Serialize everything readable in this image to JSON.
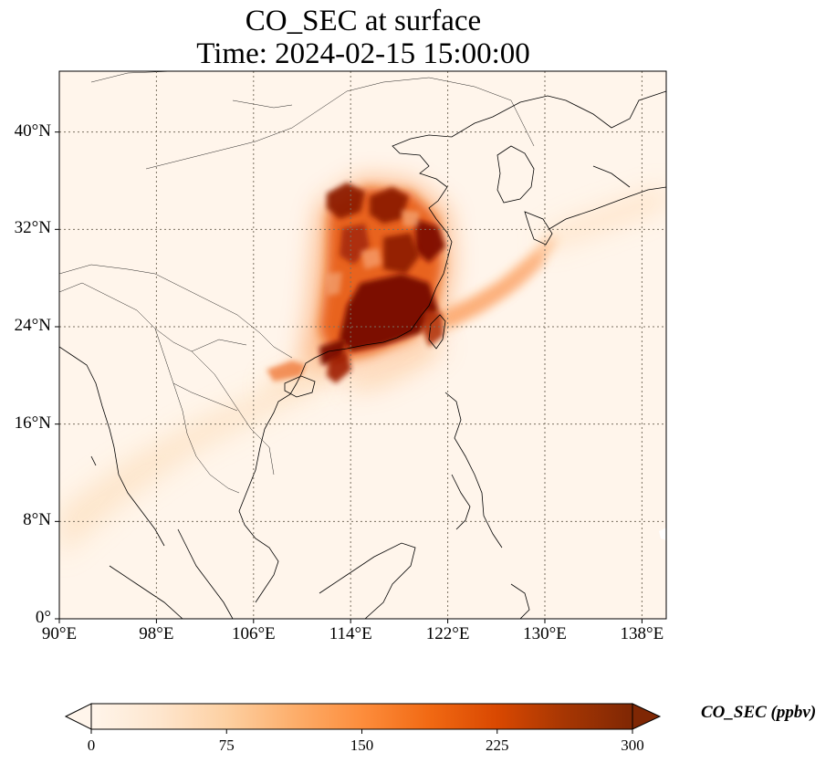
{
  "figure": {
    "title_line1": "CO_SEC at surface",
    "title_line2": "Time: 2024-02-15 15:00:00"
  },
  "map": {
    "lon_range": [
      90,
      140
    ],
    "lat_range": [
      0,
      45
    ],
    "lon_ticks": [
      "90°E",
      "98°E",
      "106°E",
      "114°E",
      "122°E",
      "130°E",
      "138°E"
    ],
    "lat_ticks": [
      "0°",
      "8°N",
      "16°N",
      "24°N",
      "32°N",
      "40°N"
    ],
    "gridlines": true,
    "field": "CO_SEC",
    "plume_regions": [
      {
        "name": "eastern-china-core",
        "lon": [
          111,
          121
        ],
        "lat": [
          21,
          36
        ],
        "level": "high"
      },
      {
        "name": "taiwan-japan-band",
        "lon": [
          120,
          134
        ],
        "lat": [
          23,
          31
        ],
        "level": "moderate"
      },
      {
        "name": "southwest-band",
        "lon": [
          90,
          112
        ],
        "lat": [
          7,
          22
        ],
        "level": "low"
      }
    ]
  },
  "colorbar": {
    "label": "CO_SEC (ppbv)",
    "min": 0,
    "max": 300,
    "tick_labels": [
      "0",
      "75",
      "150",
      "225",
      "300"
    ],
    "extend": "both",
    "colormap": [
      "#fff5eb",
      "#fee6ce",
      "#fdd0a2",
      "#fdae6b",
      "#fd8d3c",
      "#f16913",
      "#d94801",
      "#a63603",
      "#7f2704"
    ]
  }
}
